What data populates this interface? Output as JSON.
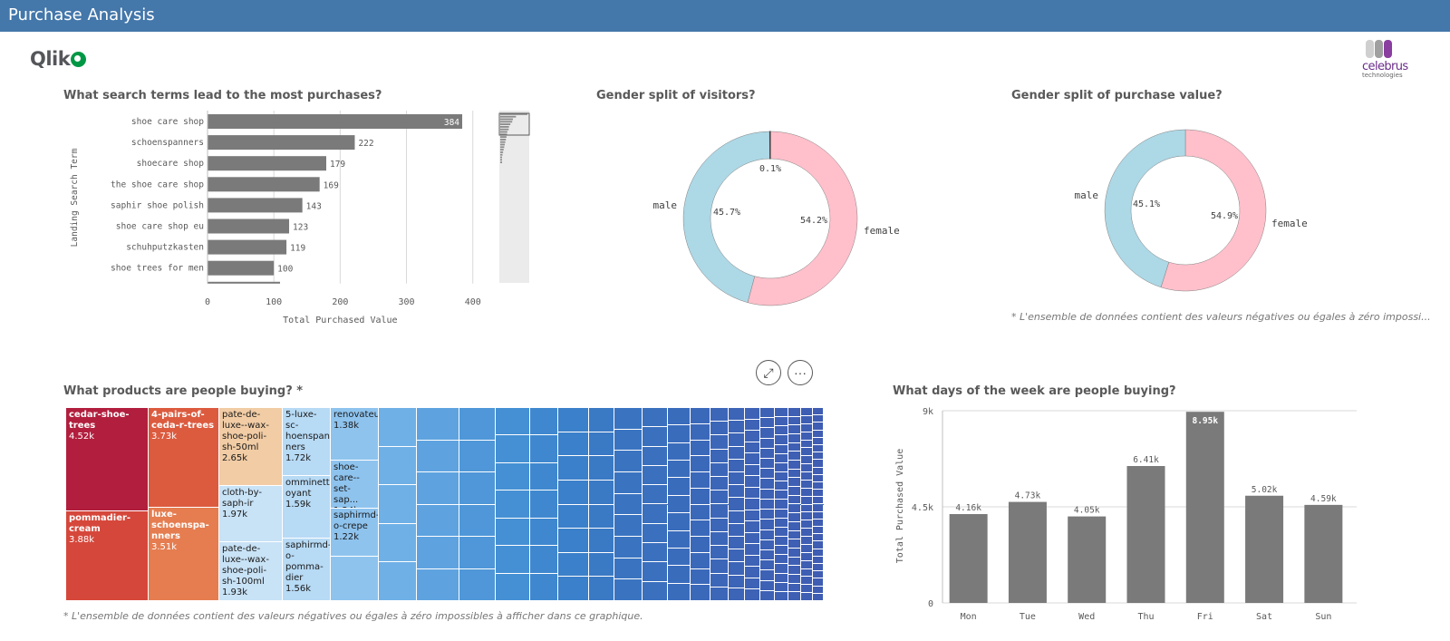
{
  "app": {
    "title": "Purchase Analysis"
  },
  "logos": {
    "qlik": "Qlik",
    "celebrus_name": "celebrus",
    "celebrus_sub": "technologies"
  },
  "panels": {
    "search": {
      "title": "What search terms lead to the most purchases?"
    },
    "gender_visitors": {
      "title": "Gender split of visitors?"
    },
    "gender_value": {
      "title": "Gender split of purchase value?",
      "note": "* L'ensemble de données contient des valeurs négatives ou égales à zéro impossi..."
    },
    "products": {
      "title": "What products are people buying? *",
      "note": "* L'ensemble de données contient des valeurs négatives ou égales à zéro impossibles à afficher dans ce graphique."
    },
    "days": {
      "title": "What days of the week are people buying?"
    }
  },
  "controls": {
    "expand_icon": "expand-icon",
    "more_icon": "more-options-icon",
    "more_glyph": "···",
    "expand_glyph": "⤢"
  },
  "colors": {
    "bar": "#7a7a7a",
    "male": "#add8e6",
    "female": "#ffc0cb",
    "header": "#4477aa"
  },
  "chart_data": [
    {
      "type": "bar",
      "orientation": "horizontal",
      "categories": [
        "shoe care shop",
        "schoenspanners",
        "shoecare shop",
        "the shoe care shop",
        "saphir shoe polish",
        "shoe care shop eu",
        "schuhputzkasten",
        "shoe trees for men"
      ],
      "values": [
        384,
        222,
        179,
        169,
        143,
        123,
        119,
        100
      ],
      "value_labels": [
        "384",
        "222",
        "179",
        "169",
        "143",
        "123",
        "119",
        "100"
      ],
      "xlabel": "Total Purchased Value",
      "ylabel": "Landing Search Term",
      "xticks": [
        "0",
        "100",
        "200",
        "300",
        "400"
      ],
      "xlim": [
        0,
        440
      ],
      "grid": true
    },
    {
      "type": "pie",
      "donut": true,
      "labels": [
        "female",
        "male",
        ""
      ],
      "values": [
        54.2,
        45.7,
        0.1
      ],
      "value_labels": [
        "54.2%",
        "45.7%",
        "0.1%"
      ],
      "colors": [
        "#ffc0cb",
        "#add8e6",
        "#3d3d3d"
      ]
    },
    {
      "type": "pie",
      "donut": true,
      "labels": [
        "female",
        "male"
      ],
      "values": [
        54.9,
        45.1
      ],
      "value_labels": [
        "54.9%",
        "45.1%"
      ],
      "colors": [
        "#ffc0cb",
        "#add8e6"
      ]
    },
    {
      "type": "treemap",
      "items": [
        {
          "label": "cedar-shoe-trees",
          "value": "4.52k"
        },
        {
          "label": "pommadier-cream",
          "value": "3.88k"
        },
        {
          "label": "4-pairs-of-ceda-r-trees",
          "value": "3.73k"
        },
        {
          "label": "luxe-schoenspa-nners",
          "value": "3.51k"
        },
        {
          "label": "pate-de-luxe--wax-shoe-poli-sh-50ml",
          "value": "2.65k"
        },
        {
          "label": "cloth-by-saph-ir",
          "value": "1.97k"
        },
        {
          "label": "pate-de-luxe--wax-shoe-poli-sh-100ml",
          "value": "1.93k"
        },
        {
          "label": "5-luxe-sc-hoenspan-ners",
          "value": "1.72k"
        },
        {
          "label": "omminett-oyant",
          "value": "1.59k"
        },
        {
          "label": "saphirmd-o-pomma-dier",
          "value": "1.56k"
        },
        {
          "label": "renovateur",
          "value": "1.38k"
        },
        {
          "label": "shoe-care--set-sap...",
          "value": "1.24k"
        },
        {
          "label": "saphirmd-o-crepe",
          "value": "1.22k"
        }
      ]
    },
    {
      "type": "bar",
      "categories": [
        "Mon",
        "Tue",
        "Wed",
        "Thu",
        "Fri",
        "Sat",
        "Sun"
      ],
      "values": [
        4160,
        4730,
        4050,
        6410,
        8950,
        5020,
        4590
      ],
      "value_labels": [
        "4.16k",
        "4.73k",
        "4.05k",
        "6.41k",
        "8.95k",
        "5.02k",
        "4.59k"
      ],
      "ylabel": "Total Purchased Value",
      "yticks": [
        "0",
        "4.5k",
        "9k"
      ],
      "ylim": [
        0,
        9000
      ]
    }
  ]
}
